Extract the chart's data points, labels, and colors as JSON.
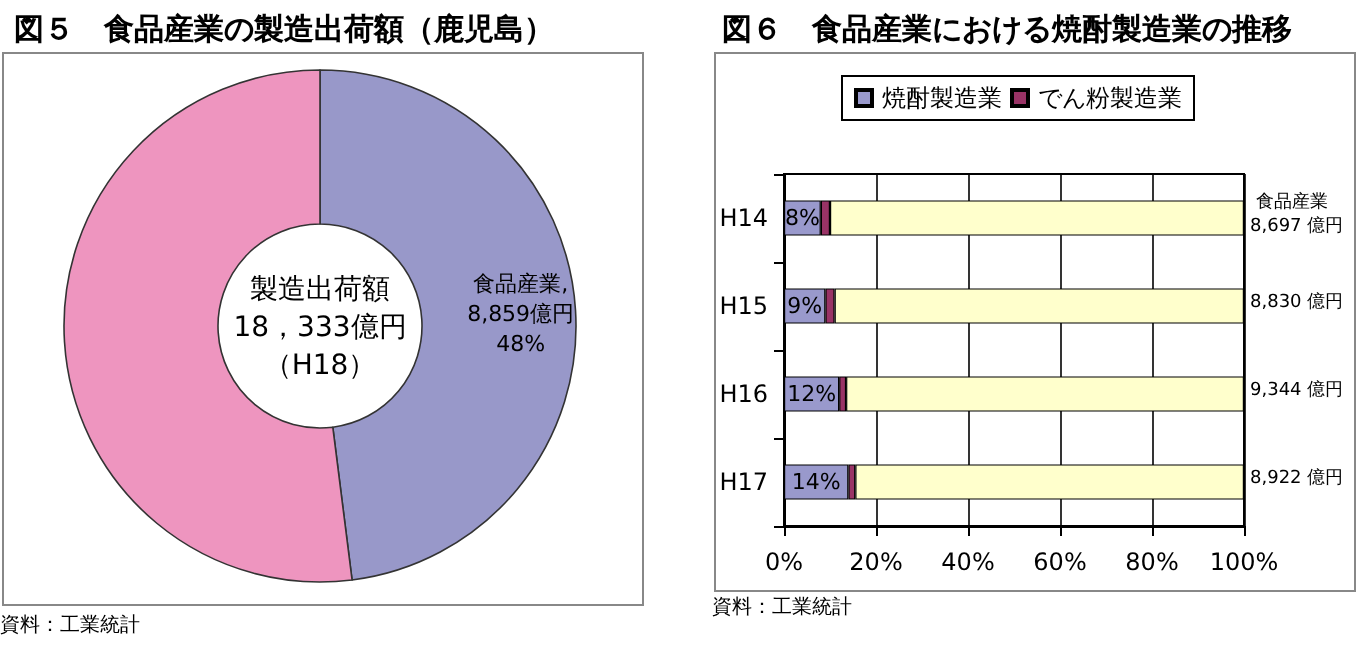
{
  "chart_data": [
    {
      "type": "donut",
      "title": "図５　食品産業の製造出荷額（鹿児島）",
      "categories": [
        null,
        null
      ],
      "values": [
        48,
        52
      ],
      "colors": [
        "#9898c9",
        "#ee95bf"
      ],
      "value_labels": [
        "食品産業,\n8,859億円\n48%",
        null
      ],
      "legend": false,
      "annotations": [
        "製造出荷額",
        "18，333億円",
        "（H18）",
        "資料：工業統計"
      ]
    },
    {
      "type": "bar",
      "title": "図６　食品産業における焼酎製造業の推移",
      "orientation": "horizontal",
      "stacked": true,
      "categories": [
        "H14",
        "H15",
        "H16",
        "H17"
      ],
      "series": [
        {
          "name": "焼酎製造業",
          "color": "#9999cc",
          "values": [
            8,
            9,
            12,
            14
          ],
          "value_labels": [
            "8%",
            "9%",
            "12%",
            "14%"
          ]
        },
        {
          "name": "でん粉製造業",
          "color": "#993366",
          "values": [
            2,
            2,
            1.5,
            1.5
          ]
        },
        {
          "color": "#ffffcc",
          "values": [
            90,
            89,
            86.5,
            84.5
          ]
        }
      ],
      "xlim": [
        0,
        100
      ],
      "xticks": [
        {
          "value": 0,
          "label": "0%"
        },
        {
          "value": 20,
          "label": "20%"
        },
        {
          "value": 40,
          "label": "40%"
        },
        {
          "value": 60,
          "label": "60%"
        },
        {
          "value": 80,
          "label": "80%"
        },
        {
          "value": 100,
          "label": "100%"
        }
      ],
      "grid": "x",
      "legend": "top",
      "annotations": [
        "食品産業",
        "8,697 億円",
        "8,830 億円",
        "9,344 億円",
        "8,922 億円",
        "資料：工業統計"
      ]
    }
  ]
}
